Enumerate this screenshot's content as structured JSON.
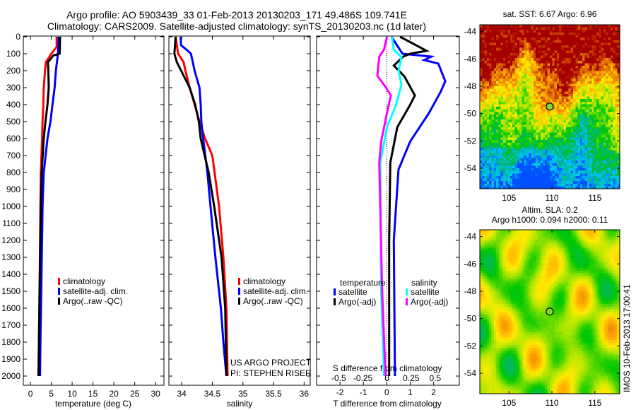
{
  "title": {
    "line1": "Argo profile: AO 5903439_33 01-Feb-2013 20130203_171 49.486S 109.741E",
    "line2": "Climatology: CARS2009. Satellite-adjusted climatology: synTS_20130203.nc (1d later)"
  },
  "colors": {
    "climatology": "#ff0000",
    "satellite": "#0000ff",
    "argo": "#000000",
    "sal_satellite": "#00ffff",
    "sal_argo": "#ff00ff"
  },
  "chart_data": [
    {
      "type": "line",
      "name": "temperature-profile",
      "xlabel": "temperature (deg C)",
      "ylabel": "",
      "xlim": [
        -1.7,
        32
      ],
      "ylim": [
        2055,
        0
      ],
      "xticks": [
        0,
        5,
        10,
        15,
        20,
        25,
        30
      ],
      "yticks": [
        0,
        100,
        200,
        300,
        400,
        500,
        600,
        700,
        800,
        900,
        1000,
        1100,
        1200,
        1300,
        1400,
        1500,
        1600,
        1700,
        1800,
        1900,
        2000
      ],
      "legend": [
        "climatology",
        "satellite-adj. clim.",
        "Argo(..raw -QC)"
      ],
      "legend_placement": "lower-center",
      "series": [
        {
          "name": "climatology",
          "color": "#ff0000",
          "depth": [
            0,
            60,
            100,
            150,
            200,
            300,
            400,
            500,
            600,
            800,
            1000,
            1500,
            1700,
            2000
          ],
          "values": [
            6.3,
            6.3,
            5.0,
            3.7,
            3.5,
            3.2,
            3.1,
            2.9,
            2.8,
            2.5,
            2.4,
            2.2,
            2.1,
            1.9
          ]
        },
        {
          "name": "satellite-adj. clim.",
          "color": "#0000ff",
          "depth": [
            0,
            100,
            200,
            300,
            400,
            500,
            600,
            800,
            1000,
            1500,
            1800,
            2000
          ],
          "values": [
            6.8,
            6.6,
            6.1,
            5.8,
            5.3,
            4.8,
            4.1,
            3.2,
            2.9,
            2.6,
            2.4,
            2.3
          ]
        },
        {
          "name": "Argo(..raw -QC)",
          "color": "#000000",
          "depth": [
            0,
            100,
            110,
            150,
            200,
            300,
            400,
            500,
            600,
            800,
            1000,
            1500,
            2000
          ],
          "values": [
            7.1,
            7.0,
            5.5,
            4.2,
            4.3,
            4.4,
            4.1,
            3.6,
            3.2,
            2.7,
            2.5,
            2.2,
            1.95
          ]
        }
      ]
    },
    {
      "type": "line",
      "name": "salinity-profile",
      "xlabel": "salinity",
      "xlim": [
        33.79,
        36.1
      ],
      "ylim": [
        2055,
        0
      ],
      "xticks": [
        34,
        34.5,
        35,
        35.5,
        36
      ],
      "legend": [
        "climatology",
        "satellite-adj. clim.",
        "Argo(..raw -QC)"
      ],
      "legend_placement": "lower-center",
      "annotation": [
        "US ARGO PROJECT",
        "PI: STEPHEN RISER"
      ],
      "series": [
        {
          "name": "climatology",
          "color": "#ff0000",
          "depth": [
            0,
            100,
            150,
            200,
            300,
            400,
            500,
            600,
            700,
            1000,
            1300,
            1600,
            2000
          ],
          "values": [
            33.9,
            33.94,
            34.03,
            34.06,
            34.13,
            34.21,
            34.29,
            34.38,
            34.5,
            34.61,
            34.68,
            34.73,
            34.75
          ]
        },
        {
          "name": "satellite-adj. clim.",
          "color": "#0000ff",
          "depth": [
            0,
            50,
            80,
            100,
            200,
            300,
            400,
            500,
            600,
            800,
            1000,
            1300,
            1600,
            1800,
            2000
          ],
          "values": [
            33.98,
            33.99,
            34.09,
            34.15,
            34.21,
            34.29,
            34.31,
            34.32,
            34.35,
            34.42,
            34.47,
            34.55,
            34.64,
            34.68,
            34.73
          ]
        },
        {
          "name": "Argo(..raw -QC)",
          "color": "#000000",
          "depth": [
            0,
            100,
            150,
            200,
            250,
            300,
            400,
            500,
            600,
            800,
            1000,
            1300,
            1600,
            2000
          ],
          "values": [
            33.9,
            33.88,
            33.92,
            33.99,
            34.06,
            34.13,
            34.22,
            34.28,
            34.31,
            34.44,
            34.53,
            34.65,
            34.71,
            34.73
          ]
        }
      ]
    },
    {
      "type": "line",
      "name": "difference-profile",
      "xlabel": "T difference from climatology",
      "xlabel2": "S difference from climatology",
      "xlim": [
        -3.0,
        3.1
      ],
      "xlim_s": [
        -0.73,
        0.75
      ],
      "ylim": [
        2055,
        0
      ],
      "xticks": [
        -2,
        -1,
        0,
        1,
        2
      ],
      "xticks_s": [
        -0.5,
        -0.25,
        0,
        0.25,
        0.5
      ],
      "legend_titles": [
        "temperature",
        "salinity"
      ],
      "legend": [
        "satellite",
        "Argo(-adj)",
        "satellite",
        "Argo(-adj)"
      ],
      "series": [
        {
          "name": "T satellite",
          "axis": "T",
          "color": "#0000ff",
          "depth": [
            0,
            100,
            117,
            137,
            158,
            262,
            325,
            450,
            617,
            783,
            1200,
            2000
          ],
          "values": [
            0.2,
            0.67,
            1.9,
            1.6,
            2.2,
            2.5,
            2.3,
            1.8,
            1.0,
            0.5,
            0.3,
            0.35
          ]
        },
        {
          "name": "T Argo(-adj)",
          "axis": "T",
          "color": "#000000",
          "depth": [
            0,
            83,
            100,
            117,
            170,
            233,
            346,
            408,
            533,
            742,
            1200,
            2000
          ],
          "values": [
            0.57,
            1.7,
            1.0,
            0.7,
            0.3,
            0.75,
            1.2,
            0.97,
            0.45,
            0.15,
            0.1,
            0.1
          ]
        },
        {
          "name": "S satellite",
          "axis": "S",
          "color": "#00ffff",
          "depth": [
            0,
            75,
            120,
            200,
            283,
            408,
            533,
            742,
            1500,
            2000
          ],
          "values": [
            0.05,
            0.07,
            0.15,
            0.12,
            0.15,
            0.09,
            0.0,
            -0.07,
            -0.06,
            -0.03
          ]
        },
        {
          "name": "S Argo(-adj)",
          "axis": "S",
          "color": "#ff00ff",
          "depth": [
            0,
            75,
            117,
            230,
            300,
            346,
            450,
            617,
            742,
            1500,
            2000
          ],
          "values": [
            0.0,
            -0.03,
            -0.08,
            -0.1,
            -0.01,
            0.04,
            0.0,
            -0.06,
            -0.08,
            -0.05,
            -0.015
          ]
        }
      ]
    },
    {
      "type": "heatmap",
      "name": "sst-map",
      "title": "sat. SST: 6.67 Argo: 6.96",
      "xlim": [
        101.6,
        117.9
      ],
      "ylim": [
        -55.5,
        -43.5
      ],
      "xticks": [
        105,
        110,
        115
      ],
      "yticks": [
        -44,
        -46,
        -48,
        -50,
        -52,
        -54
      ],
      "marker": {
        "lon": 109.741,
        "lat": -49.486
      }
    },
    {
      "type": "heatmap",
      "name": "sla-map",
      "title": "Altim. SLA: 0.2",
      "subtitle": "Argo h1000: 0.094 h2000: 0.11",
      "xlim": [
        101.6,
        117.9
      ],
      "ylim": [
        -55.5,
        -43.5
      ],
      "xticks": [
        105,
        110,
        115
      ],
      "yticks": [
        -44,
        -46,
        -48,
        -50,
        -52,
        -54
      ],
      "marker": {
        "lon": 109.741,
        "lat": -49.486
      }
    }
  ],
  "footer": "IMOS 10-Feb-2013 17:00:41"
}
